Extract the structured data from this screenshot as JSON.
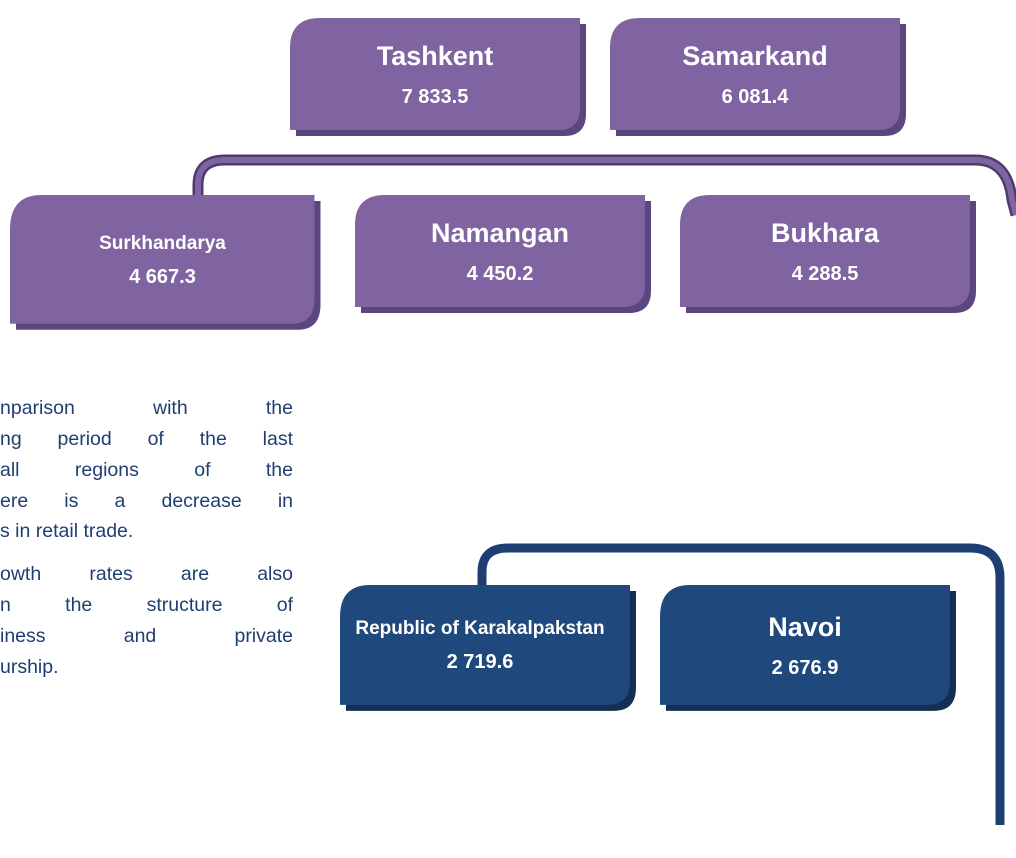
{
  "nodes": [
    {
      "label": "Tashkent",
      "value": "7 833.5"
    },
    {
      "label": "Samarkand",
      "value": "6 081.4"
    },
    {
      "label": "Surkhandarya",
      "value": "4 667.3"
    },
    {
      "label": "Namangan",
      "value": "4 450.2"
    },
    {
      "label": "Bukhara",
      "value": "4 288.5"
    },
    {
      "label": "Republic of Karakalpakstan",
      "value": "2 719.6"
    },
    {
      "label": "Navoi",
      "value": "2 676.9"
    }
  ],
  "text": {
    "paragraphs": [
      [
        "nparison with the",
        "ng period of the last",
        "all regions of the",
        "ere is a decrease in",
        "s in retail trade."
      ],
      [
        "owth rates are also",
        "n the structure of",
        "iness and private",
        "urship."
      ]
    ]
  }
}
